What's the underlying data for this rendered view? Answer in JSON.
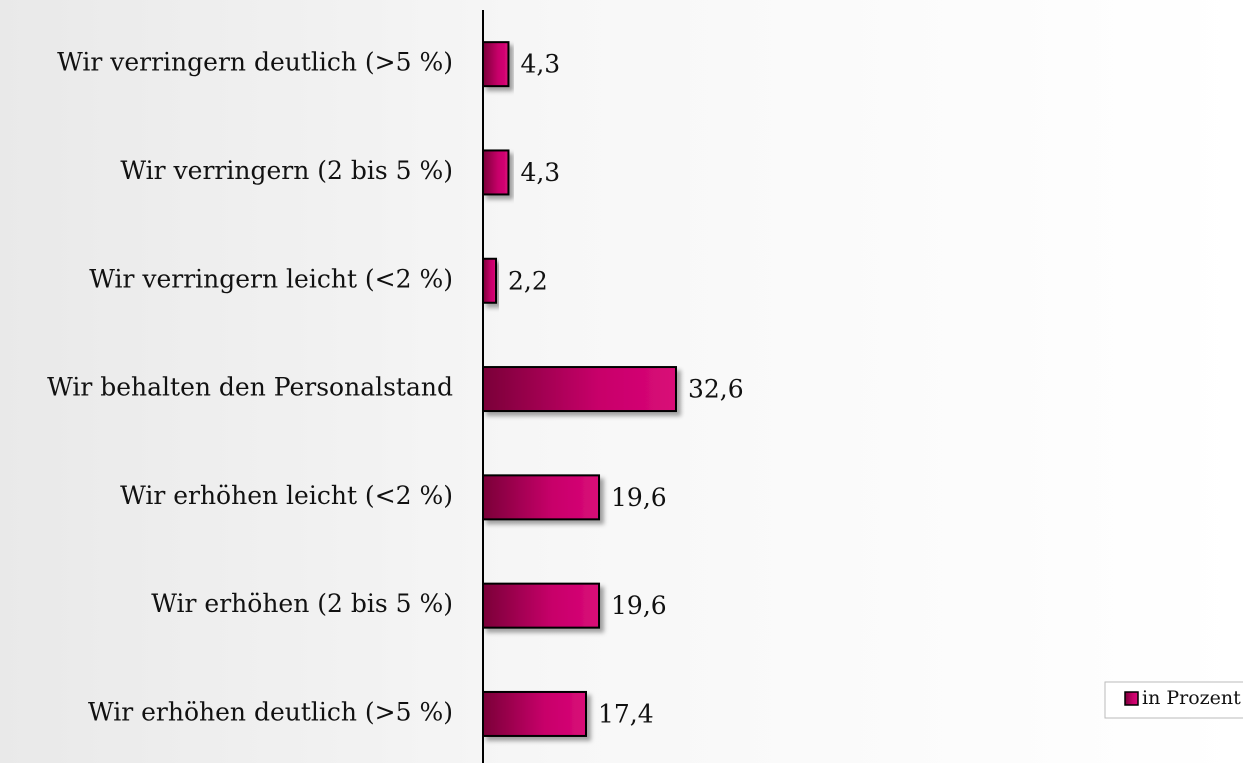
{
  "chart_data": {
    "type": "bar",
    "orientation": "horizontal",
    "categories": [
      "Wir verringern deutlich (>5 %)",
      "Wir verringern (2 bis 5 %)",
      "Wir verringern leicht (<2 %)",
      "Wir behalten den Personalstand",
      "Wir erhöhen leicht (<2 %)",
      "Wir erhöhen (2 bis 5 %)",
      "Wir erhöhen deutlich (>5 %)"
    ],
    "series": [
      {
        "name": "in Prozent",
        "color": "#c8006a",
        "values": [
          4.3,
          4.3,
          2.2,
          32.6,
          19.6,
          19.6,
          17.4
        ],
        "value_labels": [
          "4,3",
          "4,3",
          "2,2",
          "32,6",
          "19,6",
          "19,6",
          "17,4"
        ]
      }
    ],
    "legend": "bottom-right"
  }
}
